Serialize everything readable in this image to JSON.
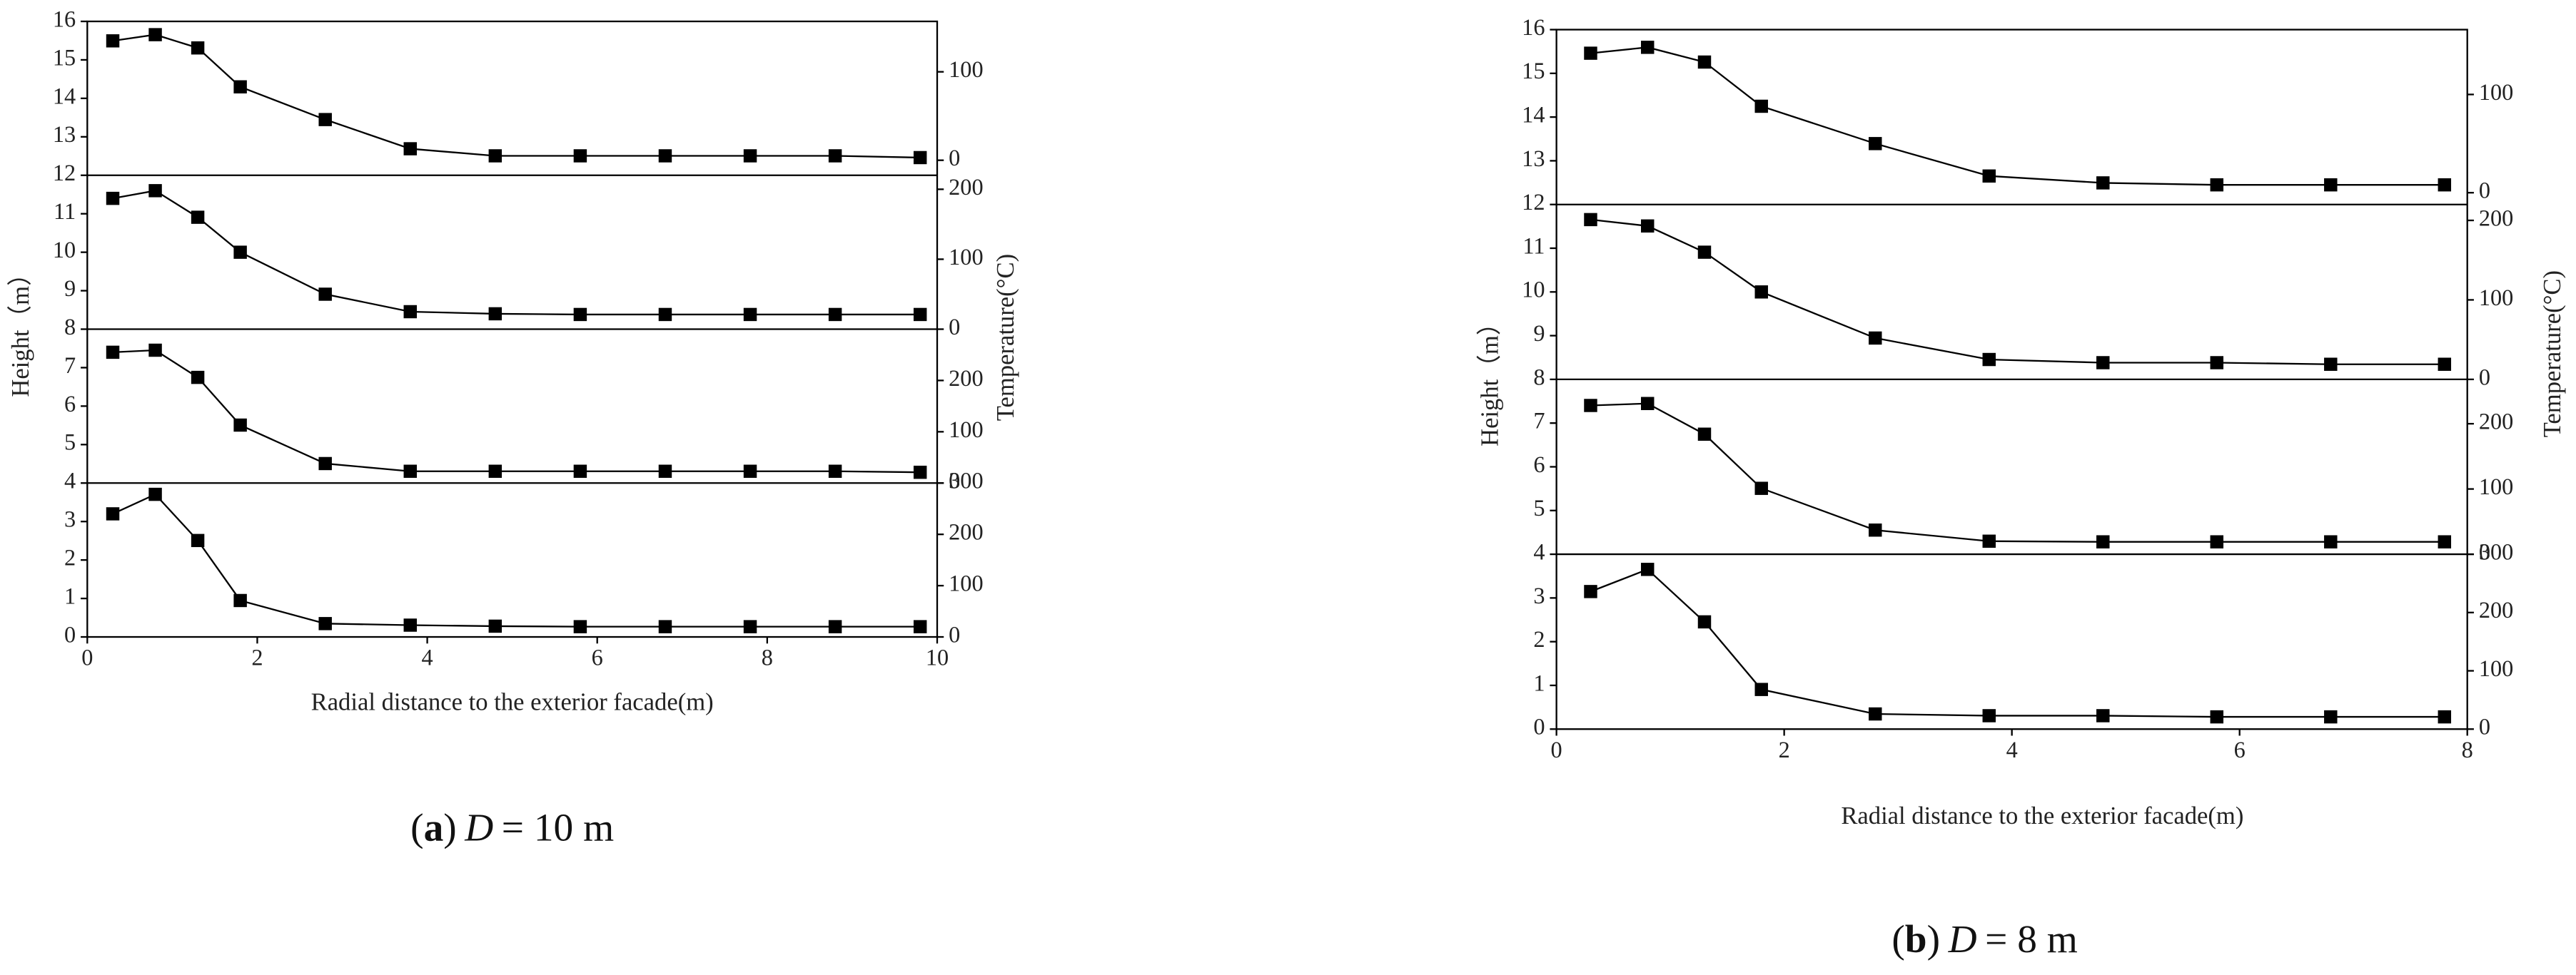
{
  "chart_data": [
    {
      "type": "line",
      "color": "#000000",
      "xlabel": "Radial distance to the exterior facade(m)",
      "ylabel": "Height（m）",
      "y2label": "Temperature(°C)",
      "caption_parts": [
        "(",
        "a",
        ")",
        "D",
        "= 10 m"
      ],
      "x": [
        0.3,
        0.8,
        1.3,
        1.8,
        2.8,
        3.8,
        4.8,
        5.8,
        6.8,
        7.8,
        8.8,
        9.8
      ],
      "xlim": [
        0,
        10
      ],
      "xticks": [
        0,
        2,
        4,
        6,
        8,
        10
      ],
      "ylim": [
        0,
        16
      ],
      "yticks": [
        0,
        1,
        2,
        3,
        4,
        5,
        6,
        7,
        8,
        9,
        10,
        11,
        12,
        13,
        14,
        15,
        16
      ],
      "strips": [
        {
          "y2lim": [
            0,
            300
          ],
          "y2ticks": [
            0,
            100,
            200,
            300
          ],
          "values": [
            240,
            278,
            188,
            71,
            26,
            23,
            21,
            20,
            20,
            20,
            20,
            20
          ]
        },
        {
          "y2lim": [
            0,
            300
          ],
          "y2ticks": [
            0,
            100,
            200
          ],
          "values": [
            255,
            259,
            206,
            113,
            38,
            23,
            23,
            23,
            23,
            23,
            23,
            21
          ]
        },
        {
          "y2lim": [
            0,
            220
          ],
          "y2ticks": [
            0,
            100,
            200
          ],
          "values": [
            187,
            198,
            160,
            110,
            50,
            25,
            22,
            21,
            21,
            21,
            21,
            21
          ]
        },
        {
          "y2lim": [
            -17,
            157
          ],
          "y2ticks": [
            0,
            100
          ],
          "values": [
            135,
            142,
            127,
            83,
            46,
            13,
            5,
            5,
            5,
            5,
            5,
            3
          ]
        }
      ]
    },
    {
      "type": "line",
      "color": "#000000",
      "xlabel": "Radial distance to the exterior facade(m)",
      "ylabel": "Height（m）",
      "y2label": "Temperature(°C)",
      "caption_parts": [
        "(",
        "b",
        ")",
        "D",
        "= 8 m"
      ],
      "x": [
        0.3,
        0.8,
        1.3,
        1.8,
        2.8,
        3.8,
        4.8,
        5.8,
        6.8,
        7.8
      ],
      "xlim": [
        0,
        8
      ],
      "xticks": [
        0,
        2,
        4,
        6,
        8
      ],
      "ylim": [
        0,
        16
      ],
      "yticks": [
        0,
        1,
        2,
        3,
        4,
        5,
        6,
        7,
        8,
        9,
        10,
        11,
        12,
        13,
        14,
        15,
        16
      ],
      "strips": [
        {
          "y2lim": [
            0,
            300
          ],
          "y2ticks": [
            0,
            100,
            200,
            300
          ],
          "values": [
            236,
            274,
            184,
            68,
            26,
            23,
            23,
            21,
            21,
            21
          ]
        },
        {
          "y2lim": [
            0,
            268
          ],
          "y2ticks": [
            0,
            100,
            200
          ],
          "values": [
            228,
            231,
            184,
            101,
            37,
            20,
            19,
            19,
            19,
            19
          ]
        },
        {
          "y2lim": [
            0,
            220
          ],
          "y2ticks": [
            0,
            100,
            200
          ],
          "values": [
            201,
            193,
            160,
            110,
            52,
            25,
            21,
            21,
            19,
            19
          ]
        },
        {
          "y2lim": [
            -12,
            166
          ],
          "y2ticks": [
            0,
            100
          ],
          "values": [
            142,
            148,
            133,
            88,
            50,
            17,
            10,
            8,
            8,
            8
          ]
        }
      ]
    }
  ]
}
